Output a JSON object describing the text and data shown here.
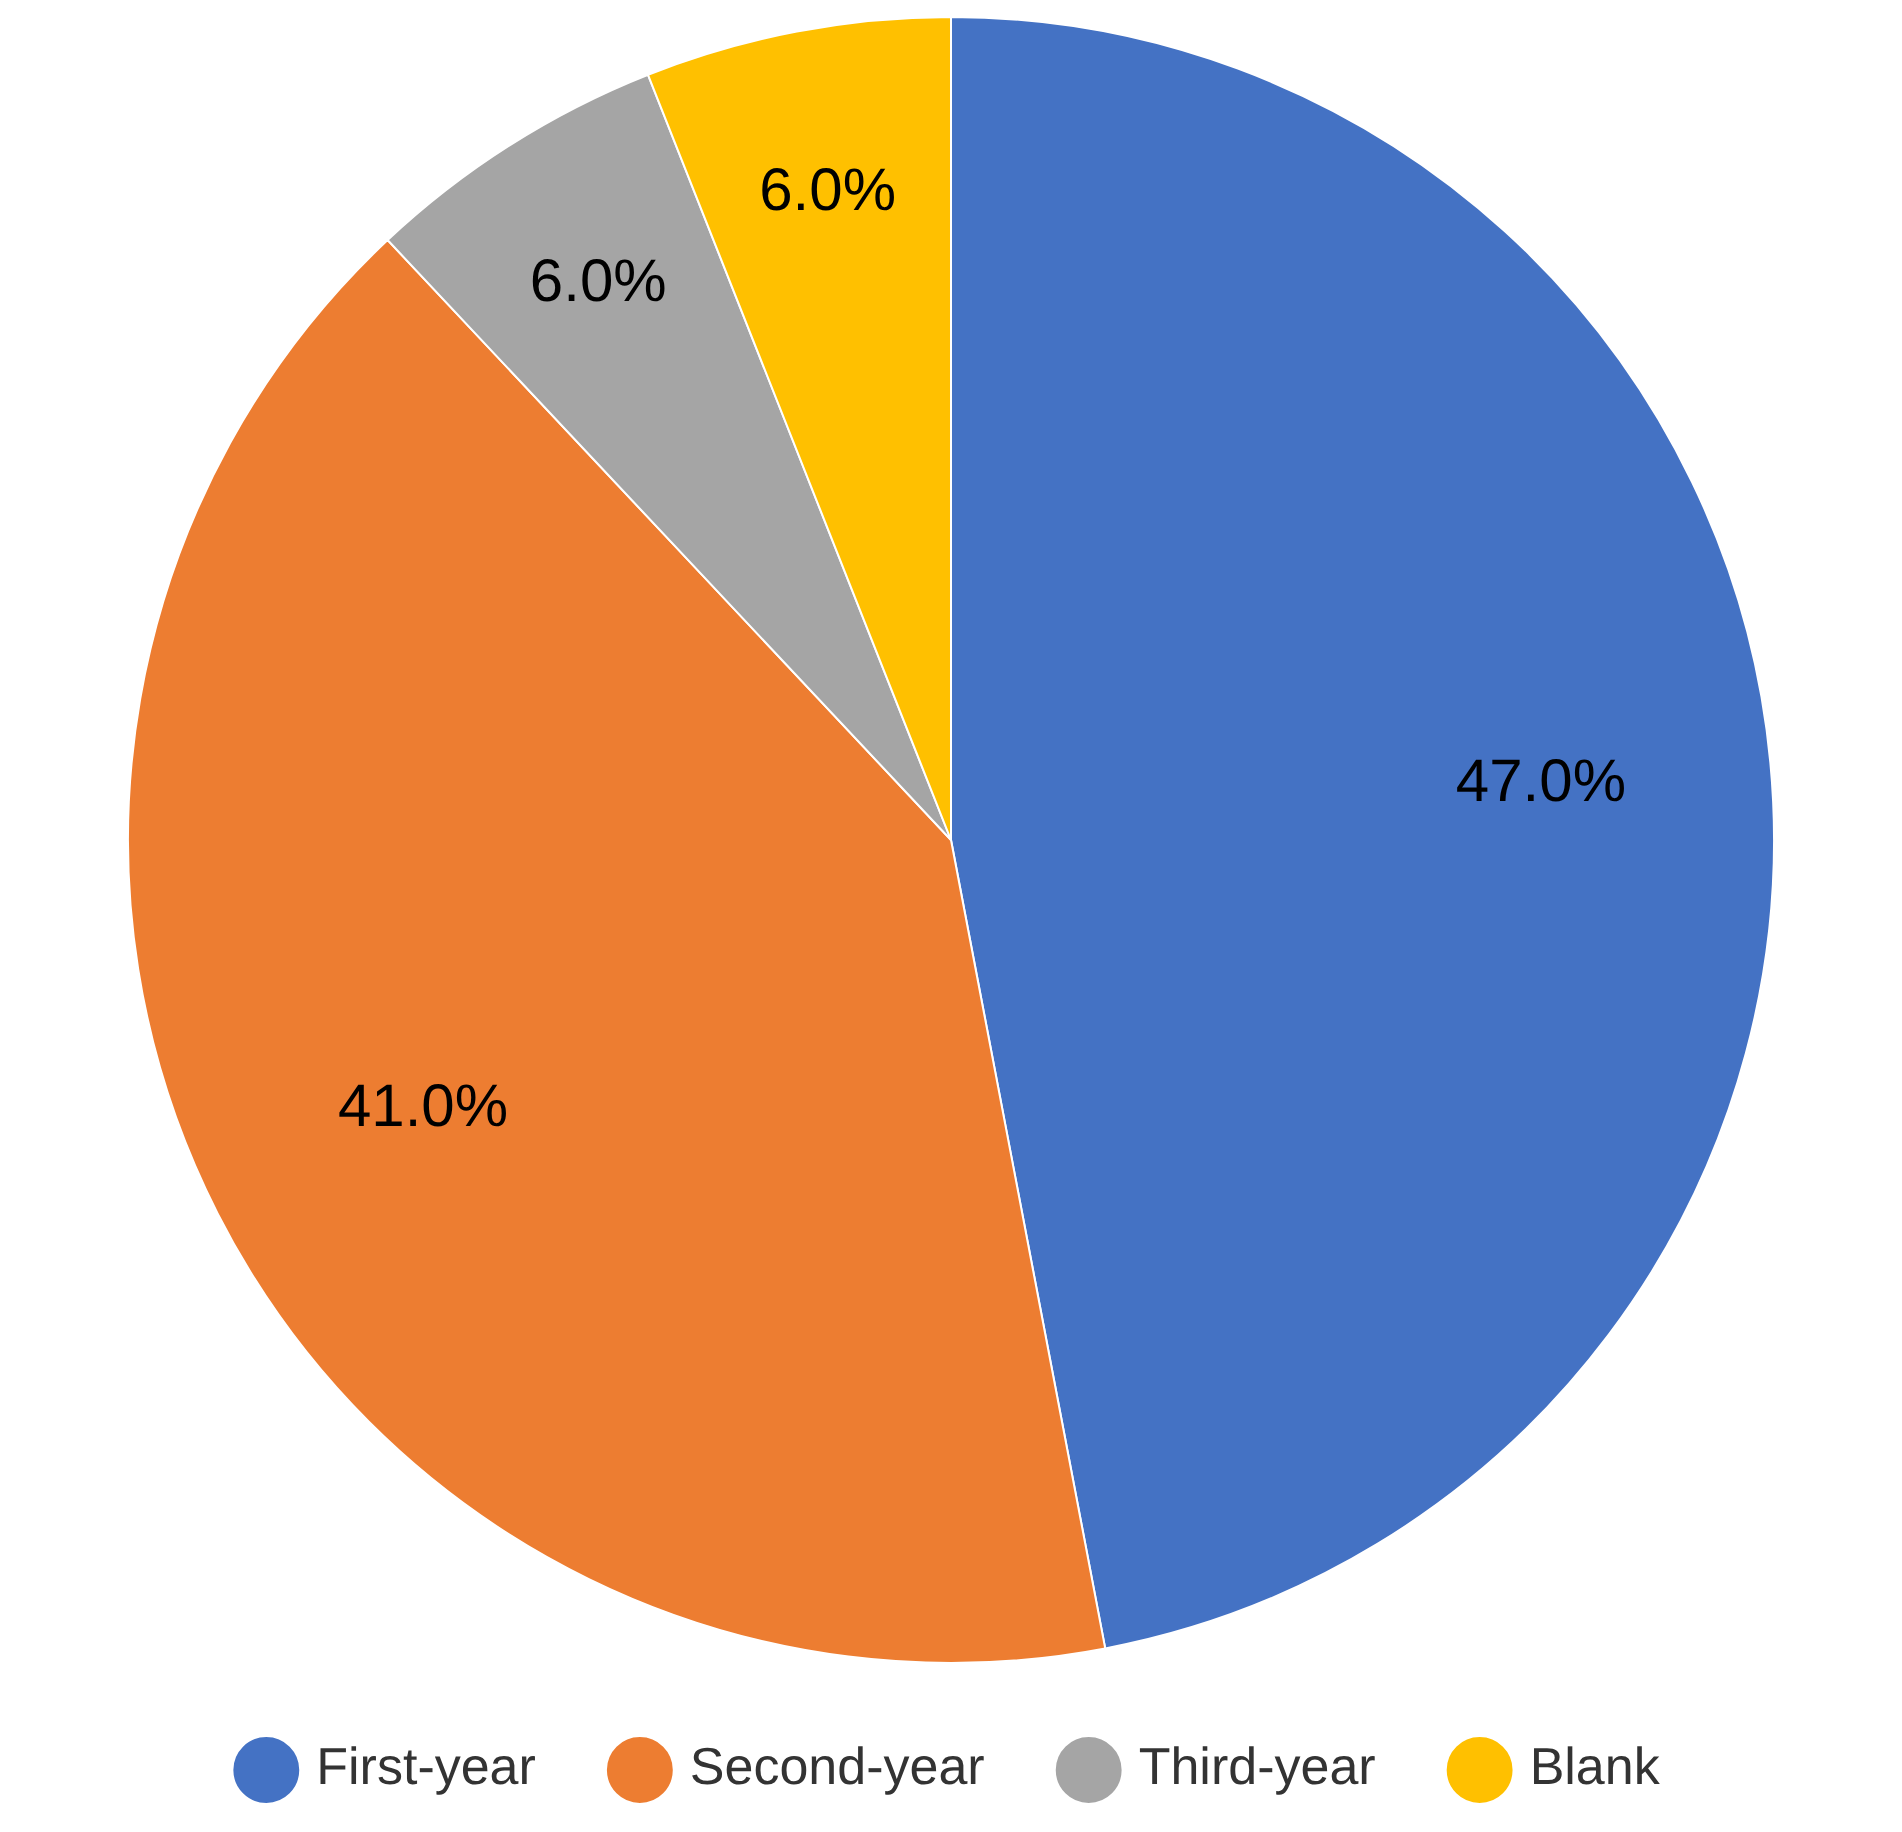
{
  "chart_data": {
    "type": "pie",
    "categories": [
      "First-year",
      "Second-year",
      "Third-year",
      "Blank"
    ],
    "values": [
      47,
      41,
      6,
      6
    ],
    "value_labels": [
      "47.0%",
      "41.0%",
      "6.0%",
      "6.0%"
    ],
    "colors": [
      "#4472c4",
      "#ed7d31",
      "#a5a5a5",
      "#ffc000"
    ],
    "legend": "bottom"
  }
}
